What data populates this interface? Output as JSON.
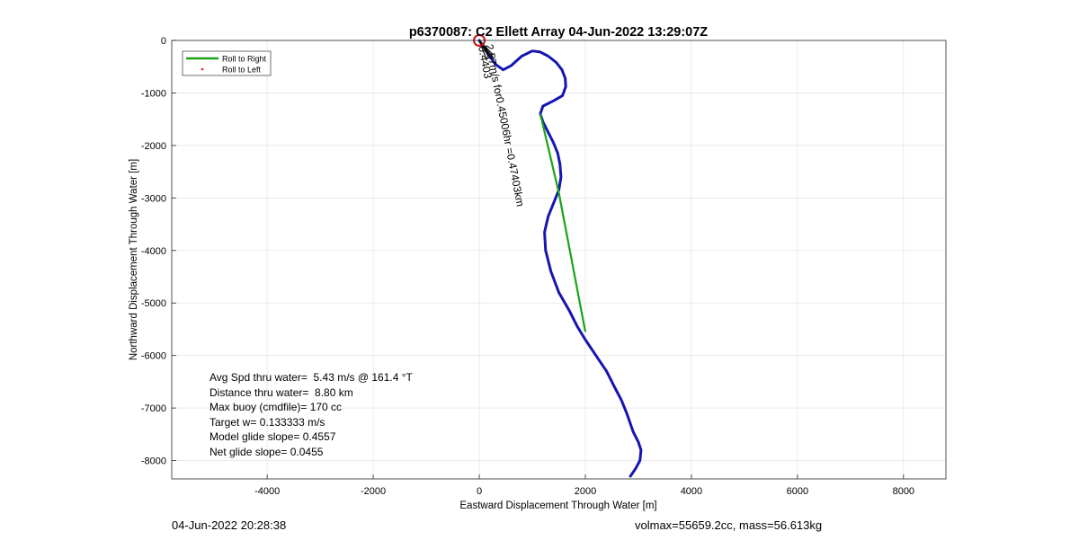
{
  "chart_data": {
    "type": "line",
    "title": "p6370087: C2 Ellett Array 04-Jun-2022 13:29:07Z",
    "xlabel": "Eastward Displacement Through Water [m]",
    "ylabel": "Northward Displacement Through Water [m]",
    "xlim": [
      -5800,
      8800
    ],
    "ylim": [
      -8350,
      0
    ],
    "xticks": [
      -4000,
      -2000,
      0,
      2000,
      4000,
      6000,
      8000
    ],
    "yticks": [
      0,
      -1000,
      -2000,
      -3000,
      -4000,
      -5000,
      -6000,
      -7000,
      -8000
    ],
    "grid": true,
    "legend": {
      "placement": "top-left",
      "entries": [
        {
          "label": "Roll to Right",
          "color": "#1aa31a",
          "style": "line"
        },
        {
          "label": "Roll to Left",
          "color": "#dd2222",
          "style": "marker"
        }
      ]
    },
    "series": [
      {
        "color": "#1515b0",
        "x": [
          0,
          100,
          200,
          300,
          450,
          600,
          800,
          1000,
          1150,
          1300,
          1450,
          1560,
          1620,
          1630,
          1570,
          1400,
          1200,
          1150,
          1200,
          1300,
          1400,
          1480,
          1520,
          1540,
          1500,
          1400,
          1300,
          1230,
          1250,
          1350,
          1500,
          1700,
          1850,
          2000,
          2200,
          2400,
          2550,
          2680,
          2780,
          2850,
          2900,
          2950,
          3000,
          3050,
          3030,
          2950,
          2850
        ],
        "y": [
          0,
          -150,
          -300,
          -450,
          -560,
          -480,
          -300,
          -200,
          -220,
          -300,
          -420,
          -560,
          -720,
          -880,
          -1050,
          -1150,
          -1250,
          -1400,
          -1550,
          -1750,
          -1950,
          -2150,
          -2350,
          -2600,
          -2850,
          -3100,
          -3350,
          -3650,
          -4000,
          -4400,
          -4800,
          -5150,
          -5450,
          -5700,
          -6000,
          -6300,
          -6600,
          -6850,
          -7100,
          -7300,
          -7450,
          -7550,
          -7650,
          -7800,
          -8000,
          -8150,
          -8300
        ]
      },
      {
        "color": "#1aa31a",
        "x": [
          1150,
          1500,
          2000
        ],
        "y": [
          -1400,
          -2900,
          -5550
        ]
      }
    ],
    "marker": {
      "x": 0,
      "y": 0,
      "color": "#cc1111"
    },
    "annotation_rotated": "2.57m/s for0.45006hr =0.47403km",
    "annotation_overlap": "0.4403",
    "stats": [
      "Avg Spd thru water=  5.43 m/s @ 161.4 °T",
      "Distance thru water=  8.80 km",
      "Max buoy (cmdfile)= 170 cc",
      "Target w= 0.133333 m/s",
      "Model glide slope= 0.4557",
      "Net glide slope= 0.0455"
    ]
  },
  "footer": {
    "left": "04-Jun-2022 20:28:38",
    "right": "volmax=55659.2cc, mass=56.613kg"
  }
}
